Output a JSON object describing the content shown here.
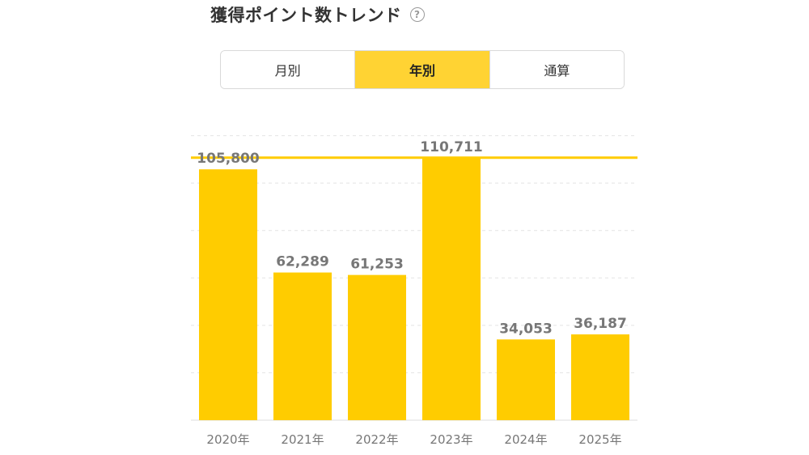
{
  "header": {
    "title": "獲得ポイント数トレンド",
    "help_icon": "?"
  },
  "tabs": [
    {
      "label": "月別",
      "active": false
    },
    {
      "label": "年別",
      "active": true
    },
    {
      "label": "通算",
      "active": false
    }
  ],
  "colors": {
    "bar": "#ffcc00",
    "max_line": "#ffcc00",
    "active_tab": "#ffd333",
    "label": "#777777"
  },
  "chart_data": {
    "type": "bar",
    "categories": [
      "2020年",
      "2021年",
      "2022年",
      "2023年",
      "2024年",
      "2025年"
    ],
    "values": [
      105800,
      62289,
      61253,
      110711,
      34053,
      36187
    ],
    "value_labels": [
      "105,800",
      "62,289",
      "61,253",
      "110,711",
      "34,053",
      "36,187"
    ],
    "ylim": [
      0,
      140000
    ],
    "grid": true,
    "reference_line": {
      "value": 110711
    }
  }
}
